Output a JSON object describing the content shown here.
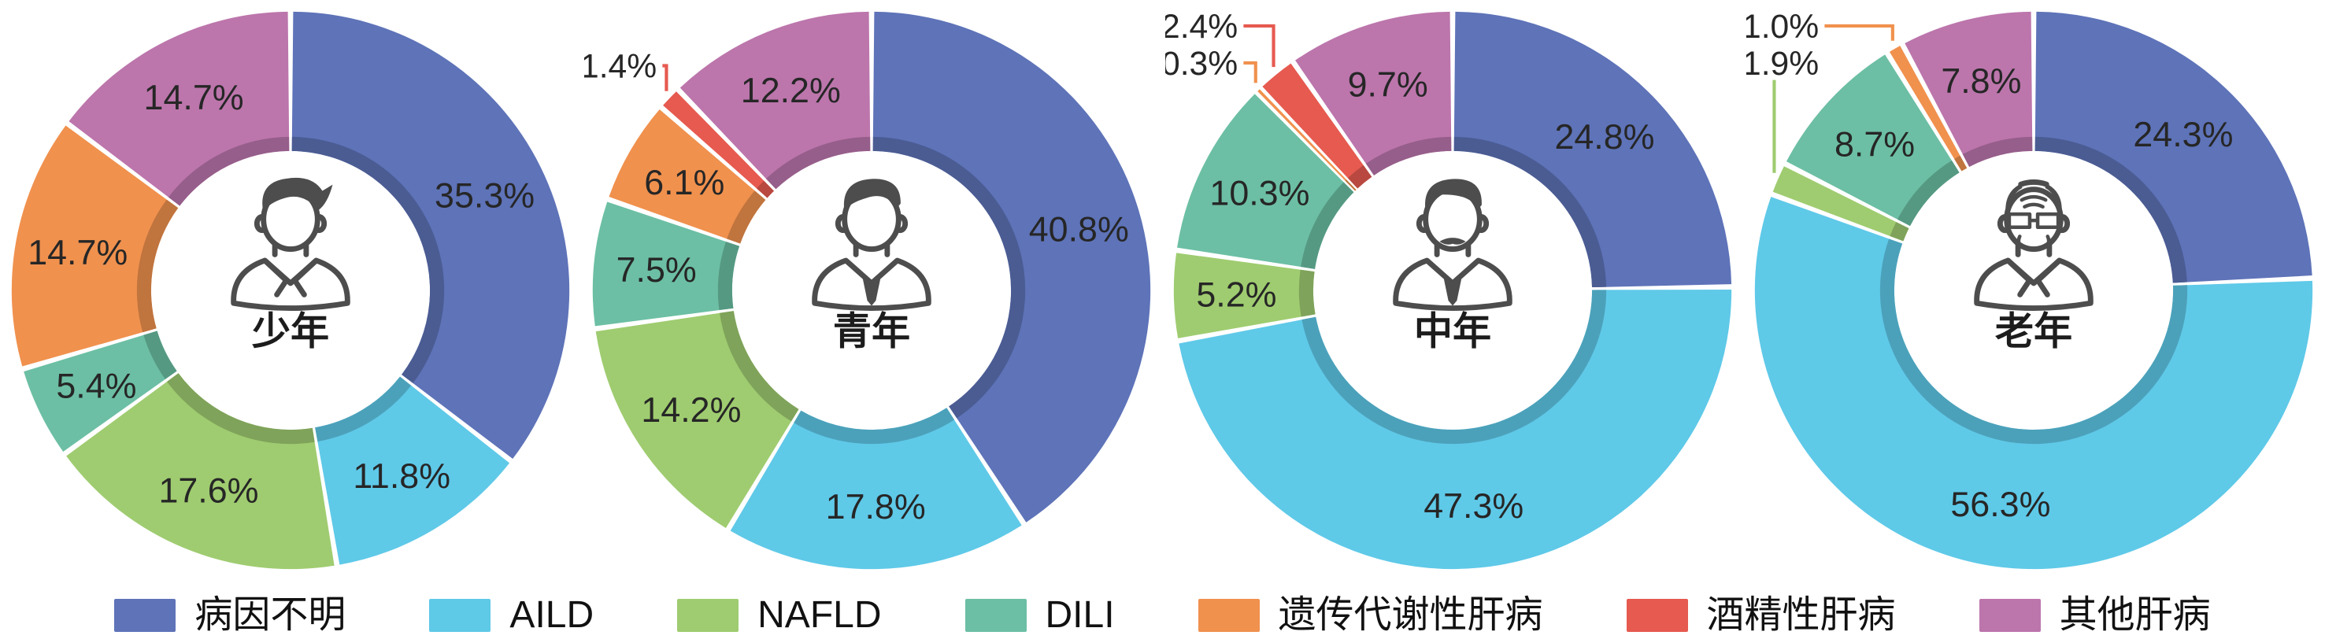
{
  "palette": {
    "病因不明": "#5E73B8",
    "AILD": "#5FC9E8",
    "NAFLD": "#9FCC70",
    "DILI": "#6CBFA4",
    "遗传代谢性肝病": "#F0914E",
    "酒精性肝病": "#E65A50",
    "其他肝病": "#BC76AC"
  },
  "legend": [
    {
      "label": "病因不明"
    },
    {
      "label": "AILD"
    },
    {
      "label": "NAFLD"
    },
    {
      "label": "DILI"
    },
    {
      "label": "遗传代谢性肝病"
    },
    {
      "label": "酒精性肝病"
    },
    {
      "label": "其他肝病"
    }
  ],
  "chart_data": [
    {
      "type": "pie",
      "subtype": "donut",
      "title": "少年",
      "icon": "teen-boy-icon",
      "start_angle": "12-oclock",
      "direction": "clockwise",
      "unit": "%",
      "slices": [
        {
          "category": "病因不明",
          "value": 35.3,
          "label": "35.3%"
        },
        {
          "category": "AILD",
          "value": 11.8,
          "label": "11.8%"
        },
        {
          "category": "NAFLD",
          "value": 17.6,
          "label": "17.6%"
        },
        {
          "category": "DILI",
          "value": 5.4,
          "label": "5.4%"
        },
        {
          "category": "遗传代谢性肝病",
          "value": 14.7,
          "label": "14.7%"
        },
        {
          "category": "其他肝病",
          "value": 14.7,
          "label": "14.7%"
        }
      ]
    },
    {
      "type": "pie",
      "subtype": "donut",
      "title": "青年",
      "icon": "young-man-icon",
      "start_angle": "12-oclock",
      "direction": "clockwise",
      "unit": "%",
      "slices": [
        {
          "category": "病因不明",
          "value": 40.8,
          "label": "40.8%"
        },
        {
          "category": "AILD",
          "value": 17.8,
          "label": "17.8%"
        },
        {
          "category": "NAFLD",
          "value": 14.2,
          "label": "14.2%"
        },
        {
          "category": "DILI",
          "value": 7.5,
          "label": "7.5%"
        },
        {
          "category": "遗传代谢性肝病",
          "value": 6.1,
          "label": "6.1%"
        },
        {
          "category": "酒精性肝病",
          "value": 1.4,
          "label": "1.4%",
          "callout": true
        },
        {
          "category": "其他肝病",
          "value": 12.2,
          "label": "12.2%"
        }
      ]
    },
    {
      "type": "pie",
      "subtype": "donut",
      "title": "中年",
      "icon": "middle-aged-man-icon",
      "start_angle": "12-oclock",
      "direction": "clockwise",
      "unit": "%",
      "slices": [
        {
          "category": "病因不明",
          "value": 24.8,
          "label": "24.8%"
        },
        {
          "category": "AILD",
          "value": 47.3,
          "label": "47.3%"
        },
        {
          "category": "NAFLD",
          "value": 5.2,
          "label": "5.2%"
        },
        {
          "category": "DILI",
          "value": 10.3,
          "label": "10.3%"
        },
        {
          "category": "遗传代谢性肝病",
          "value": 0.3,
          "label": "0.3%",
          "callout": true
        },
        {
          "category": "酒精性肝病",
          "value": 2.4,
          "label": "2.4%",
          "callout": true
        },
        {
          "category": "其他肝病",
          "value": 9.7,
          "label": "9.7%"
        }
      ]
    },
    {
      "type": "pie",
      "subtype": "donut",
      "title": "老年",
      "icon": "elderly-man-icon",
      "start_angle": "12-oclock",
      "direction": "clockwise",
      "unit": "%",
      "slices": [
        {
          "category": "病因不明",
          "value": 24.3,
          "label": "24.3%"
        },
        {
          "category": "AILD",
          "value": 56.3,
          "label": "56.3%"
        },
        {
          "category": "NAFLD",
          "value": 1.9,
          "label": "1.9%",
          "callout": true
        },
        {
          "category": "DILI",
          "value": 8.7,
          "label": "8.7%"
        },
        {
          "category": "遗传代谢性肝病",
          "value": 1.0,
          "label": "1.0%",
          "callout": true
        },
        {
          "category": "其他肝病",
          "value": 7.8,
          "label": "7.8%"
        }
      ]
    }
  ]
}
